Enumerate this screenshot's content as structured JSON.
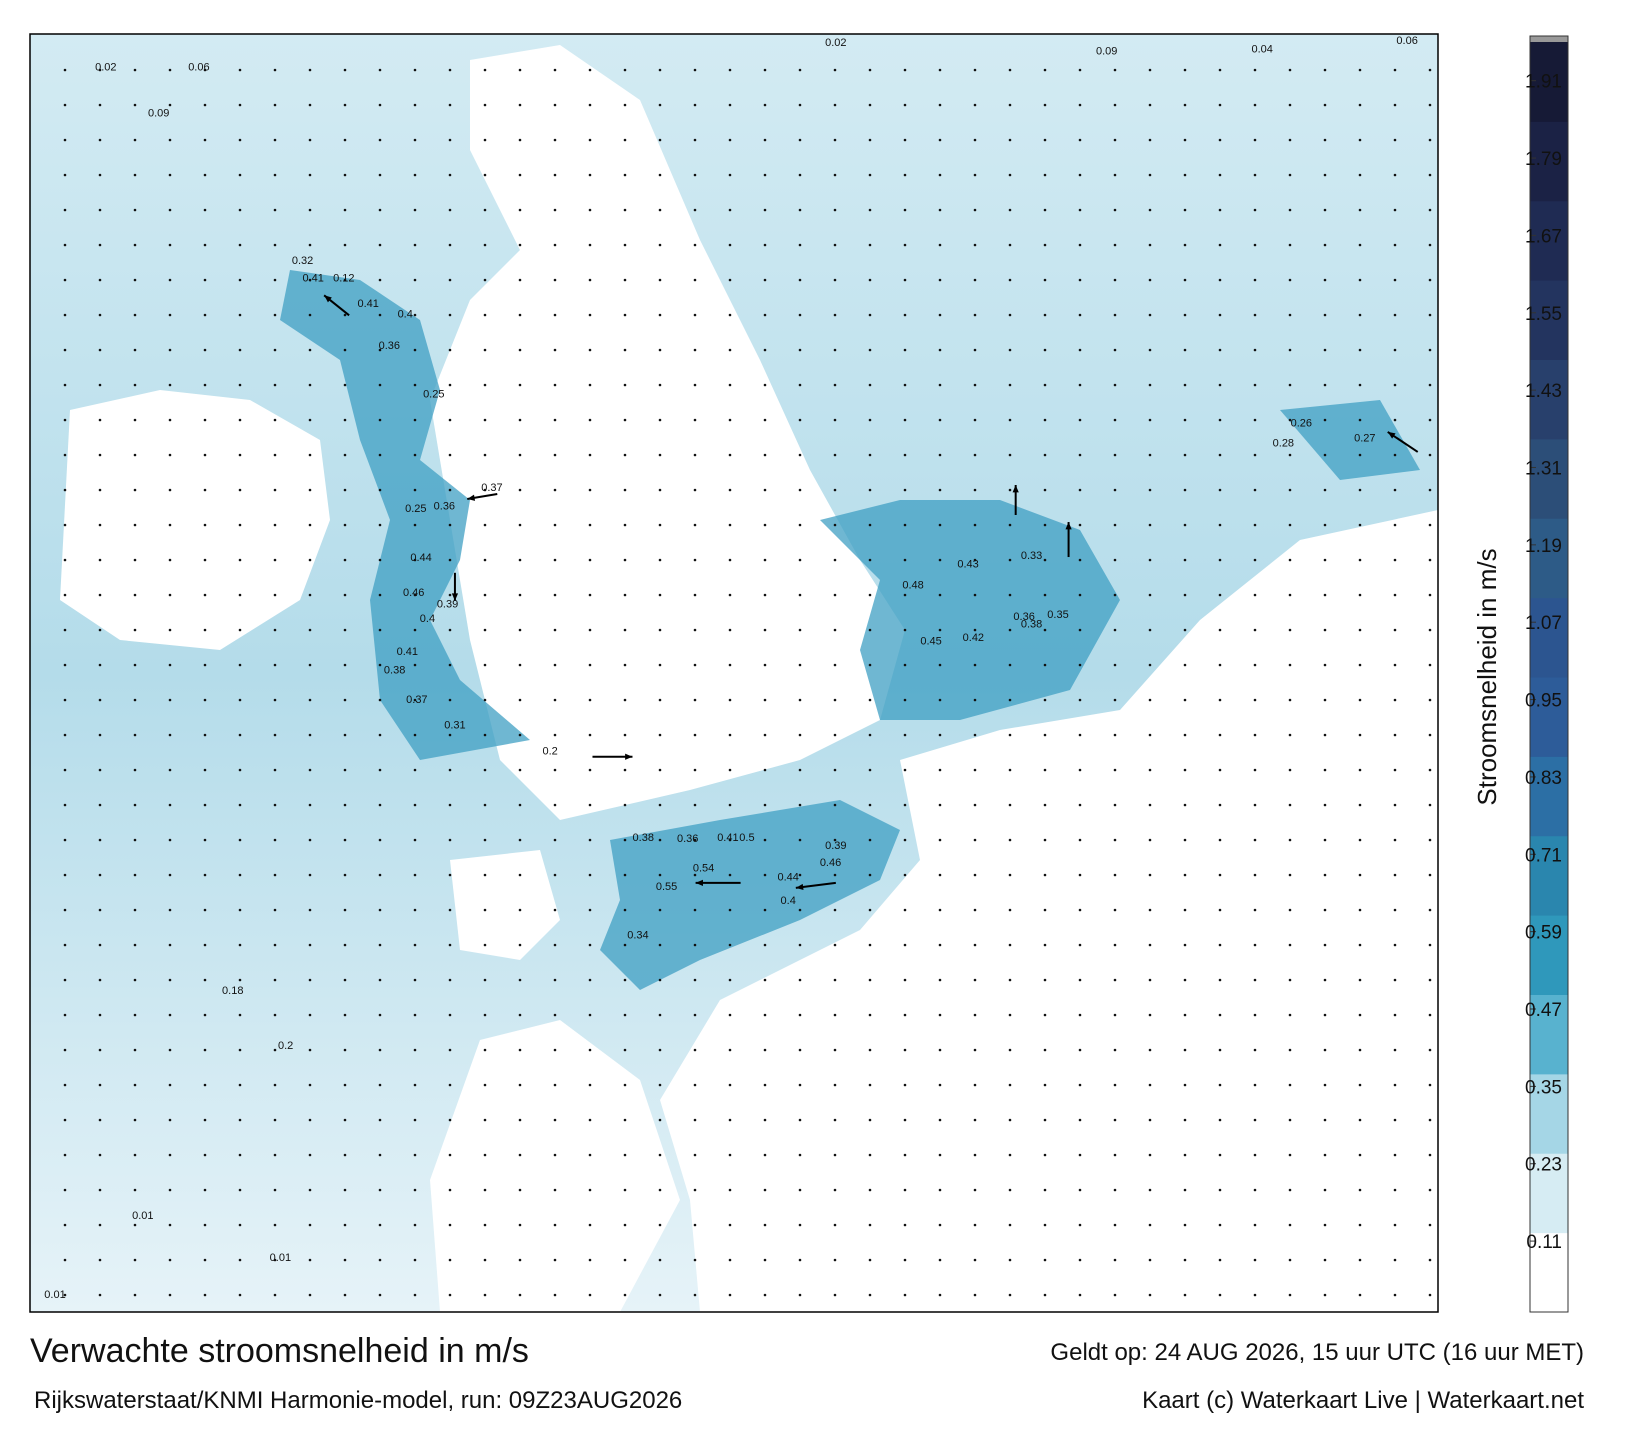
{
  "map": {
    "title": "Verwachte stroomsnelheid in m/s",
    "subtitle": "Rijkswaterstaat/KNMI Harmonie-model, run: 09Z23AUG2026",
    "valid": "Geldt op: 24 AUG 2026, 15 uur UTC (16 uur MET)",
    "credit": "Kaart (c) Waterkaart Live | Waterkaart.net",
    "colorbar": {
      "label": "Stroomsnelheid in m/s",
      "lim": [
        0,
        1.97
      ],
      "ticks": [
        0.11,
        0.23,
        0.35,
        0.47,
        0.59,
        0.71,
        0.83,
        0.95,
        1.07,
        1.19,
        1.31,
        1.43,
        1.55,
        1.67,
        1.79,
        1.91
      ],
      "colors": [
        "#ffffff",
        "#d6ecf3",
        "#a5d6e6",
        "#58b2cf",
        "#2f98bb",
        "#2a86ae",
        "#2c6fa5",
        "#2d5c99",
        "#2c5590",
        "#2d5b87",
        "#2c4e78",
        "#28406c",
        "#23345f",
        "#1f2b53",
        "#1b2245",
        "#161a36"
      ]
    },
    "labels": [
      0.02,
      0.06,
      0.09,
      0.32,
      0.41,
      0.12,
      0.41,
      0.4,
      0.36,
      0.25,
      0.37,
      0.25,
      0.36,
      0.44,
      0.46,
      0.39,
      0.4,
      0.41,
      0.38,
      0.37,
      0.31,
      0.2,
      0.45,
      0.42,
      0.38,
      0.36,
      0.35,
      0.48,
      0.43,
      0.33,
      0.38,
      0.36,
      0.41,
      0.5,
      0.54,
      0.44,
      0.4,
      0.46,
      0.39,
      0.55,
      0.34,
      0.26,
      0.27,
      0.28,
      0.2,
      0.18,
      0.01,
      0.01,
      0.01,
      0.09,
      0.04,
      0.06,
      0.02
    ]
  }
}
